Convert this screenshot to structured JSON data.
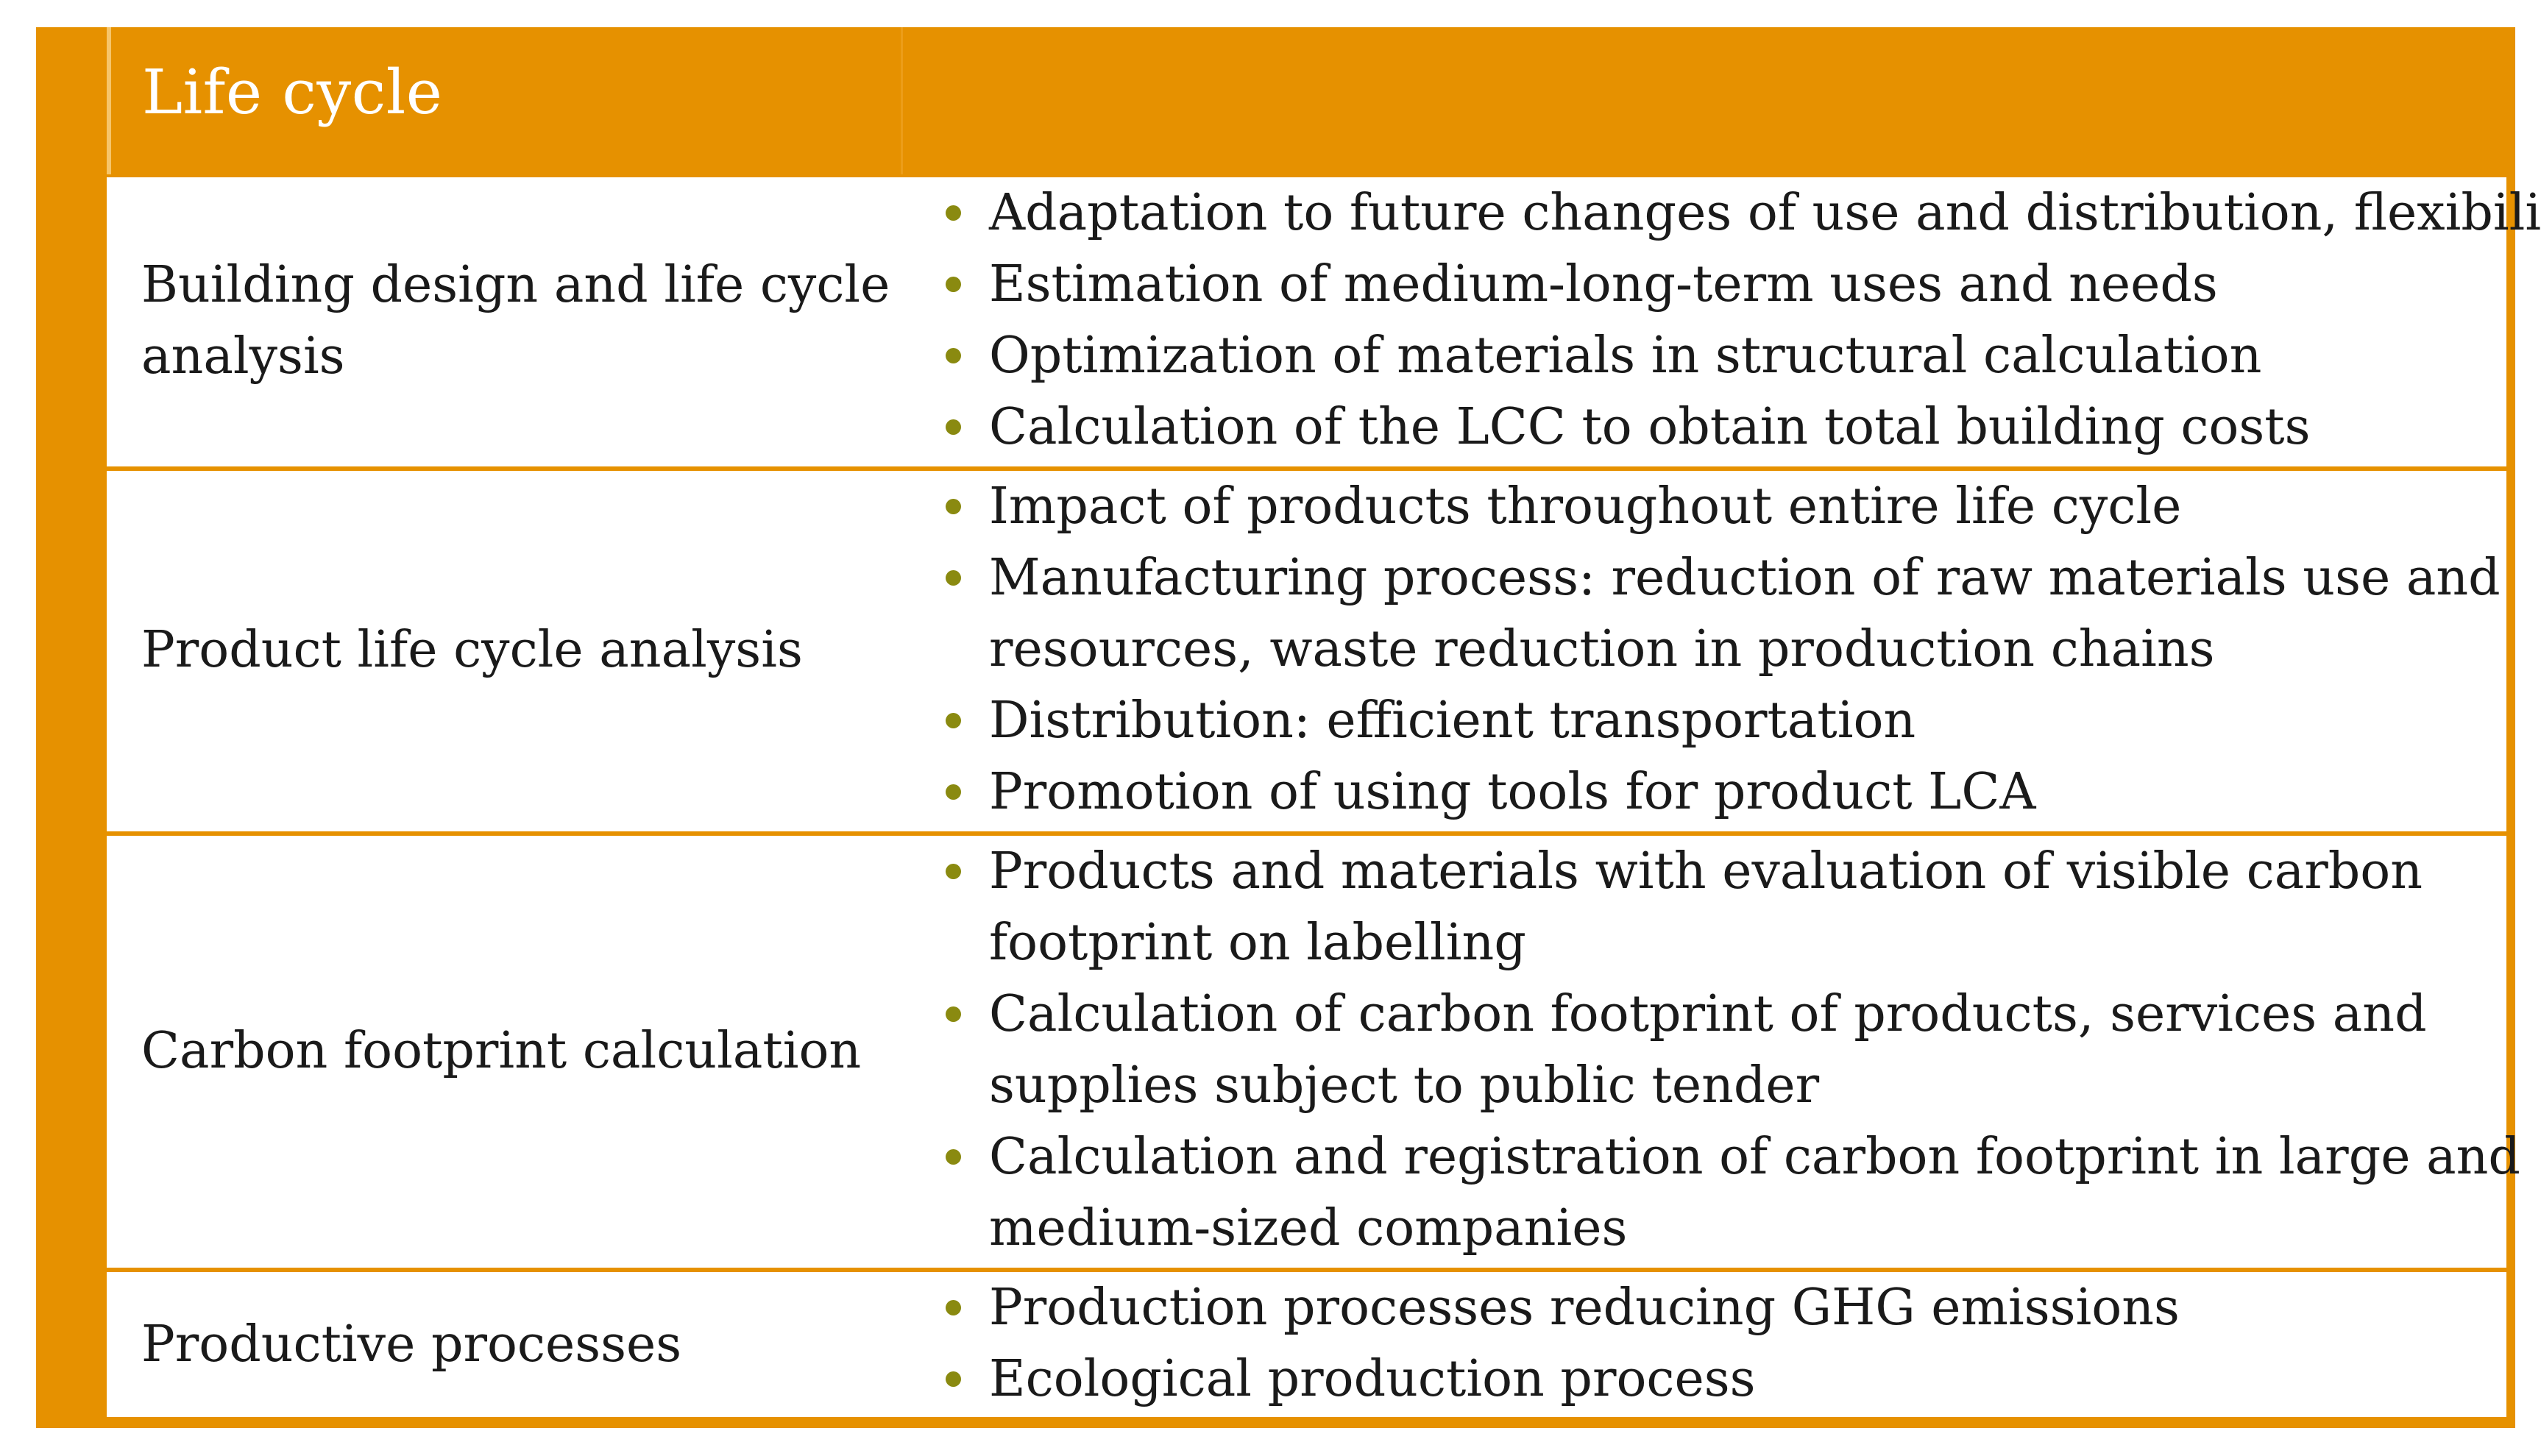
{
  "table": {
    "header": "Life cycle",
    "rows": [
      {
        "label_lines": [
          "Building design and life cycle",
          "analysis"
        ],
        "bullets": [
          [
            "Adaptation to future changes of use and distribution, flexibility"
          ],
          [
            "Estimation of medium-long-term uses and needs"
          ],
          [
            "Optimization of materials in structural calculation"
          ],
          [
            "Calculation of the LCC to obtain total building costs"
          ]
        ]
      },
      {
        "label_lines": [
          "Product life cycle analysis"
        ],
        "bullets": [
          [
            "Impact of products throughout entire life cycle"
          ],
          [
            "Manufacturing process: reduction of raw materials use and",
            "resources, waste reduction in production chains"
          ],
          [
            "Distribution: efficient transportation"
          ],
          [
            "Promotion of using tools for product LCA"
          ]
        ]
      },
      {
        "label_lines": [
          "Carbon footprint calculation"
        ],
        "bullets": [
          [
            "Products and materials with evaluation of visible carbon",
            "footprint on labelling"
          ],
          [
            "Calculation of carbon footprint of products, services and",
            "supplies subject to public tender"
          ],
          [
            "Calculation and registration of carbon footprint in large and",
            "medium-sized companies"
          ]
        ]
      },
      {
        "label_lines": [
          "Productive processes"
        ],
        "bullets": [
          [
            "Production processes reducing GHG emissions"
          ],
          [
            "Ecological production process"
          ]
        ]
      }
    ]
  }
}
